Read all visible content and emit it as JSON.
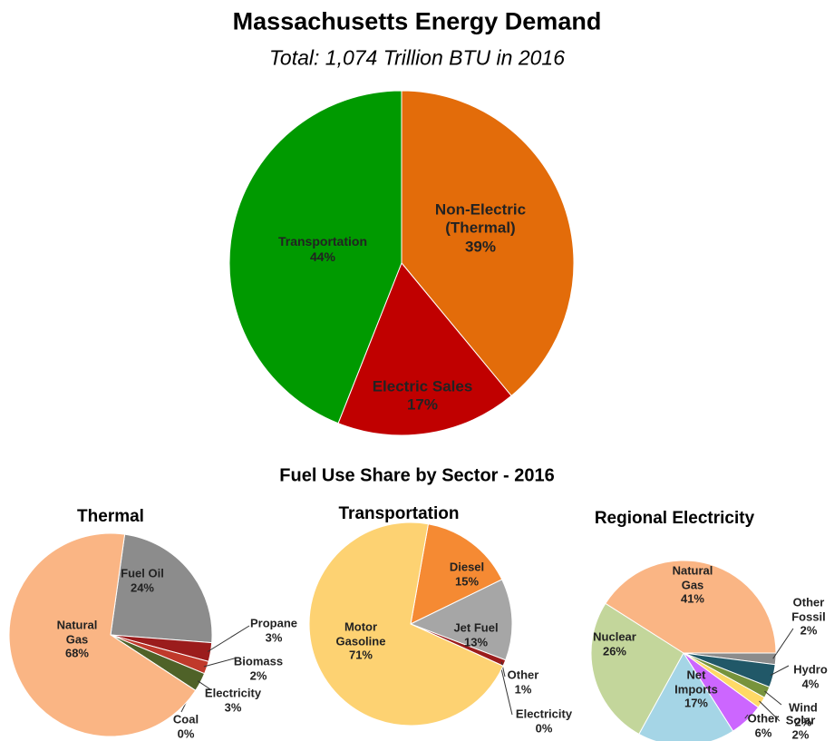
{
  "section_title": "Fuel Use Share by Sector - 2016",
  "chart_data": [
    {
      "type": "pie",
      "title": "Massachusetts Energy Demand",
      "subtitle": "Total: 1,074 Trillion BTU in 2016",
      "categories": [
        "Non-Electric\n(Thermal)",
        "Electric Sales",
        "Transportation"
      ],
      "values": [
        39,
        17,
        44
      ],
      "value_labels": [
        "39%",
        "17%",
        "44%"
      ],
      "colors": [
        "#e36c0a",
        "#c00000",
        "#009a00"
      ]
    },
    {
      "type": "pie",
      "title": "Thermal",
      "categories": [
        "Fuel Oil",
        "Propane",
        "Biomass",
        "Electricity",
        "Coal",
        "Natural\nGas"
      ],
      "values": [
        24,
        3,
        2,
        3,
        0,
        68
      ],
      "value_labels": [
        "24%",
        "3%",
        "2%",
        "3%",
        "0%",
        "68%"
      ],
      "colors": [
        "#8c8c8c",
        "#9b1c1c",
        "#c0392b",
        "#4f6228",
        "#3a3a3a",
        "#fab584"
      ]
    },
    {
      "type": "pie",
      "title": "Transportation",
      "categories": [
        "Diesel",
        "Jet Fuel",
        "Other",
        "Electricity",
        "Motor\nGasoline"
      ],
      "values": [
        15,
        13,
        1,
        0,
        71
      ],
      "value_labels": [
        "15%",
        "13%",
        "1%",
        "0%",
        "71%"
      ],
      "colors": [
        "#f58a33",
        "#a6a6a6",
        "#9b1c1c",
        "#4f6228",
        "#fdd272"
      ]
    },
    {
      "type": "pie",
      "title": "Regional Electricity",
      "categories": [
        "Other\nFossil",
        "Hydro",
        "Wind",
        "Solar",
        "Other",
        "Net\nImports",
        "Nuclear",
        "Natural\nGas"
      ],
      "values": [
        2,
        4,
        2,
        2,
        6,
        17,
        26,
        41
      ],
      "value_labels": [
        "2%",
        "4%",
        "2%",
        "2%",
        "6%",
        "17%",
        "26%",
        "41%"
      ],
      "colors": [
        "#8c8c8c",
        "#215868",
        "#77933c",
        "#ffd966",
        "#cc66ff",
        "#a5d5e6",
        "#c3d69b",
        "#fab584"
      ]
    }
  ]
}
